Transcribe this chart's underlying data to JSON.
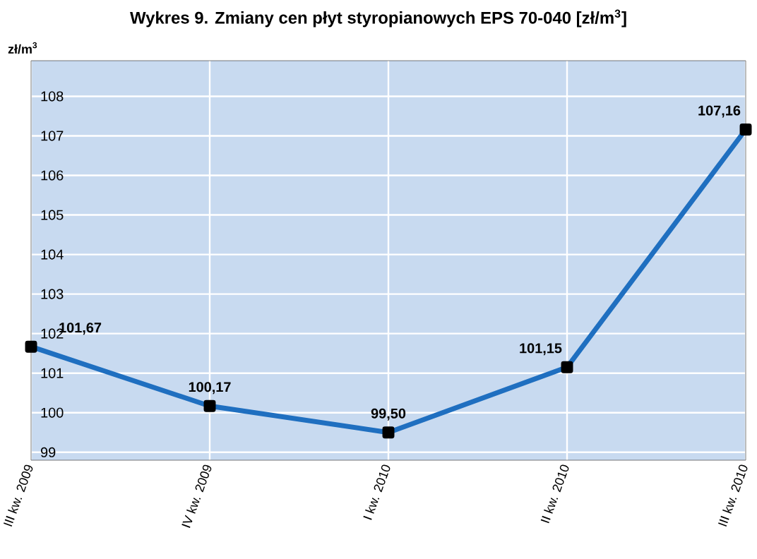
{
  "chart_data": {
    "type": "line",
    "title": "Wykres 9. Zmiany cen płyt styropianowych EPS 70-040 [zł/m$^{3}$]",
    "ylabel": "zł/m$^{3}$",
    "categories": [
      "III kw. 2009",
      "IV kw. 2009",
      "I kw. 2010",
      "II kw. 2010",
      "III kw. 2010"
    ],
    "series": [
      {
        "color": "#1f6fc0",
        "values": [
          101.67,
          100.17,
          99.5,
          101.15,
          107.16
        ],
        "value_labels": [
          "101,67",
          "100,17",
          "99,50",
          "101,15",
          "107,16"
        ]
      }
    ],
    "ylim": [
      98.8,
      108.9
    ],
    "yticks": [
      99,
      100,
      101,
      102,
      103,
      104,
      105,
      106,
      107,
      108
    ],
    "grid": true,
    "marker": "square",
    "line_style": "solid"
  }
}
